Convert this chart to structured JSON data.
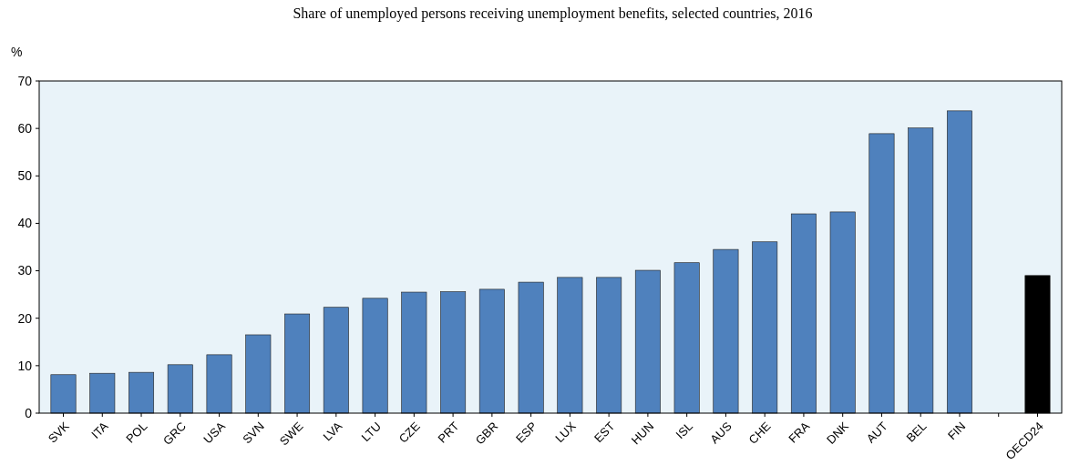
{
  "chart_data": {
    "type": "bar",
    "title": "Share of unemployed persons receiving unemployment benefits, selected countries, 2016",
    "ylabel": "%",
    "categories": [
      "SVK",
      "ITA",
      "POL",
      "GRC",
      "USA",
      "SVN",
      "SWE",
      "LVA",
      "LTU",
      "CZE",
      "PRT",
      "GBR",
      "ESP",
      "LUX",
      "EST",
      "HUN",
      "ISL",
      "AUS",
      "CHE",
      "FRA",
      "DNK",
      "AUT",
      "BEL",
      "FIN",
      null,
      "OECD24"
    ],
    "values": [
      8.1,
      8.4,
      8.6,
      10.2,
      12.3,
      16.5,
      20.9,
      22.3,
      24.2,
      25.5,
      25.6,
      26.1,
      27.6,
      28.6,
      28.6,
      30.1,
      31.7,
      34.5,
      36.1,
      42.0,
      42.4,
      58.9,
      60.1,
      63.7,
      null,
      29.0
    ],
    "colors": [
      "#4f81bd",
      "#4f81bd",
      "#4f81bd",
      "#4f81bd",
      "#4f81bd",
      "#4f81bd",
      "#4f81bd",
      "#4f81bd",
      "#4f81bd",
      "#4f81bd",
      "#4f81bd",
      "#4f81bd",
      "#4f81bd",
      "#4f81bd",
      "#4f81bd",
      "#4f81bd",
      "#4f81bd",
      "#4f81bd",
      "#4f81bd",
      "#4f81bd",
      "#4f81bd",
      "#4f81bd",
      "#4f81bd",
      "#4f81bd",
      null,
      "#000000"
    ],
    "ylim": [
      0,
      70
    ],
    "yticks": [
      0,
      10,
      20,
      30,
      40,
      50,
      60,
      70
    ]
  }
}
